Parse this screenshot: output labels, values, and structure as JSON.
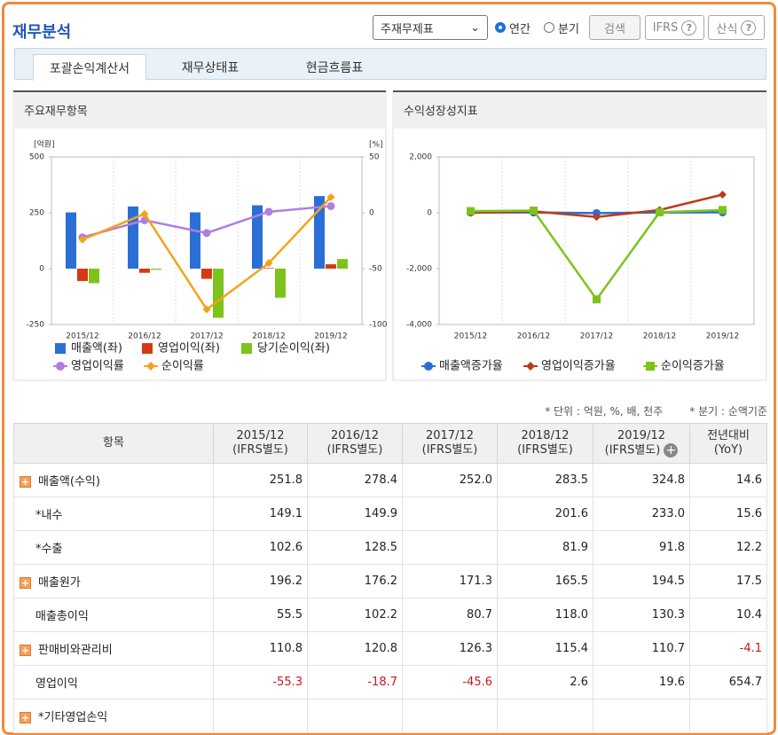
{
  "header": {
    "title": "재무분석",
    "select": "주재무제표",
    "radios": [
      "연간",
      "분기"
    ],
    "buttons": [
      "검색",
      "IFRS",
      "산식"
    ]
  },
  "tabs": [
    "포괄손익계산서",
    "재무상태표",
    "현금흐름표"
  ],
  "chart_data": [
    {
      "type": "bar",
      "title": "주요재무항목",
      "y_unit": "[억원]",
      "y2_unit": "[%]",
      "categories": [
        "2015/12",
        "2016/12",
        "2017/12",
        "2018/12",
        "2019/12"
      ],
      "ylim": [
        -250,
        500
      ],
      "yticks": [
        -250,
        0,
        250,
        500
      ],
      "y2lim": [
        -100,
        50
      ],
      "y2ticks": [
        -100,
        -50,
        0,
        50
      ],
      "series": [
        {
          "name": "매출액(좌)",
          "color": "#2a6fd6",
          "marker": "square",
          "values": [
            251.8,
            278.4,
            252.0,
            283.5,
            324.8
          ]
        },
        {
          "name": "영업이익(좌)",
          "color": "#d63a14",
          "marker": "square",
          "values": [
            -55.3,
            -18.7,
            -45.6,
            2.6,
            19.6
          ]
        },
        {
          "name": "당기순이익(좌)",
          "color": "#7cc31c",
          "marker": "square",
          "values": [
            -65,
            -5,
            -220,
            -130,
            43
          ]
        },
        {
          "name": "영업이익률",
          "color": "#b07ee0",
          "marker": "circle",
          "type": "line",
          "axis": "y2",
          "values": [
            -22.0,
            -6.7,
            -18.1,
            0.9,
            6.0
          ]
        },
        {
          "name": "순이익률",
          "color": "#f5a21b",
          "marker": "diamond",
          "type": "line",
          "axis": "y2",
          "values": [
            -24,
            -1,
            -86.5,
            -45,
            14
          ]
        }
      ]
    },
    {
      "type": "line",
      "title": "수익성장성지표",
      "categories": [
        "2015/12",
        "2016/12",
        "2017/12",
        "2018/12",
        "2019/12"
      ],
      "ylim": [
        -4000,
        2000
      ],
      "yticks": [
        {
          "value": -4000,
          "label": "-4,000"
        },
        {
          "value": -2000,
          "label": "-2,000"
        },
        0,
        {
          "value": 2000,
          "label": "2,000"
        }
      ],
      "series": [
        {
          "name": "매출액증가율",
          "color": "#2a6fd6",
          "marker": "circle",
          "values": [
            10,
            10,
            -10,
            12,
            15
          ]
        },
        {
          "name": "영업이익증가율",
          "color": "#c0391b",
          "marker": "diamond",
          "values": [
            0,
            50,
            -150,
            100,
            650
          ]
        },
        {
          "name": "순이익증가율",
          "color": "#7cc31c",
          "marker": "square",
          "values": [
            60,
            80,
            -3100,
            20,
            100
          ]
        }
      ]
    }
  ],
  "notes": [
    "* 단위 : 억원, %, 배, 천주",
    "* 분기 : 순액기준"
  ],
  "table": {
    "columns": [
      "항목",
      "2015/12\n(IFRS별도)",
      "2016/12\n(IFRS별도)",
      "2017/12\n(IFRS별도)",
      "2018/12\n(IFRS별도)",
      "2019/12\n(IFRS별도)",
      "전년대비\n(YoY)"
    ],
    "rows": [
      {
        "label": "매출액(수익)",
        "expandable": true,
        "values": [
          "251.8",
          "278.4",
          "252.0",
          "283.5",
          "324.8",
          "14.6"
        ]
      },
      {
        "label": "*내수",
        "expandable": false,
        "values": [
          "149.1",
          "149.9",
          null,
          "201.6",
          "233.0",
          "15.6"
        ]
      },
      {
        "label": "*수출",
        "expandable": false,
        "values": [
          "102.6",
          "128.5",
          null,
          "81.9",
          "91.8",
          "12.2"
        ]
      },
      {
        "label": "매출원가",
        "expandable": true,
        "values": [
          "196.2",
          "176.2",
          "171.3",
          "165.5",
          "194.5",
          "17.5"
        ]
      },
      {
        "label": "매출총이익",
        "expandable": false,
        "values": [
          "55.5",
          "102.2",
          "80.7",
          "118.0",
          "130.3",
          "10.4"
        ]
      },
      {
        "label": "판매비와관리비",
        "expandable": true,
        "values": [
          "110.8",
          "120.8",
          "126.3",
          "115.4",
          "110.7",
          "-4.1"
        ]
      },
      {
        "label": "영업이익",
        "expandable": false,
        "values": [
          "-55.3",
          "-18.7",
          "-45.6",
          "2.6",
          "19.6",
          "654.7"
        ]
      },
      {
        "label": "*기타영업손익",
        "expandable": true,
        "values": [
          null,
          null,
          null,
          null,
          null,
          null
        ]
      }
    ]
  }
}
